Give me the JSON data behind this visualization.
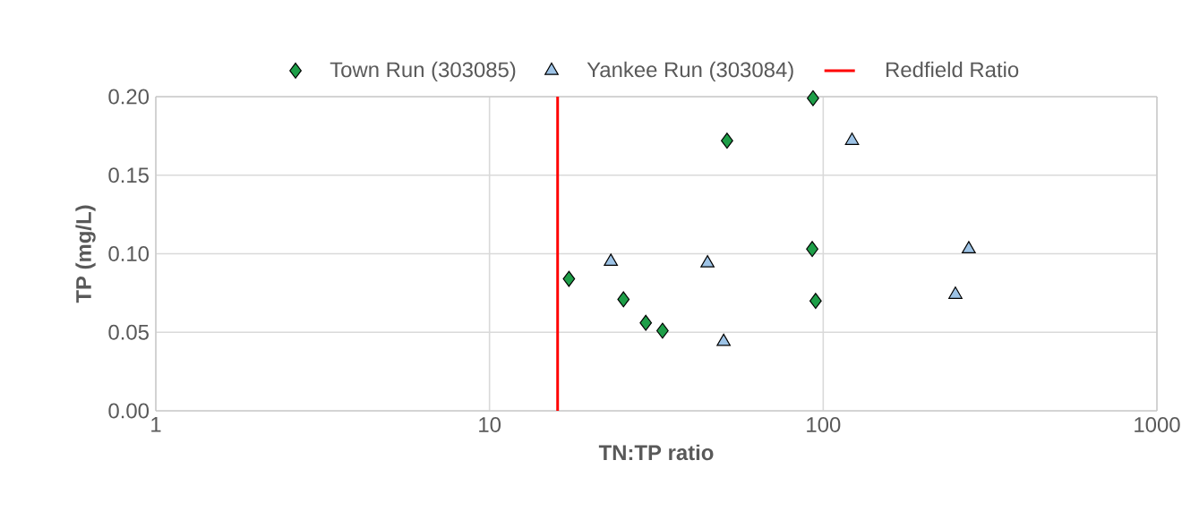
{
  "chart_data": {
    "type": "scatter",
    "xlabel": "TN:TP ratio",
    "ylabel": "TP (mg/L)",
    "log": "x",
    "grid": true,
    "legend": "top",
    "xlim": [
      1,
      1000
    ],
    "xticks": [
      1,
      10,
      100,
      1000
    ],
    "ylim": [
      0,
      0.2
    ],
    "yticks": [
      {
        "value": 0,
        "label": "0.00"
      },
      {
        "value": 0.05,
        "label": "0.05"
      },
      {
        "value": 0.1,
        "label": "0.10"
      },
      {
        "value": 0.15,
        "label": "0.15"
      },
      {
        "value": 0.2,
        "label": "0.20"
      }
    ],
    "series": [
      {
        "name": "Town Run (303085)",
        "color": "#1e9e48",
        "marker": "diamond",
        "x": [
          17.3,
          25.2,
          29.4,
          33.0,
          51.5,
          93.2,
          92.7,
          94.9
        ],
        "values": [
          0.084,
          0.071,
          0.056,
          0.051,
          0.172,
          0.199,
          0.103,
          0.07
        ]
      },
      {
        "name": "Yankee Run (303084)",
        "color": "#9dc3e6",
        "marker": "triangle",
        "x": [
          23.1,
          45.0,
          50.3,
          122,
          249,
          273
        ],
        "values": [
          0.095,
          0.094,
          0.044,
          0.172,
          0.074,
          0.103
        ]
      }
    ],
    "ref_lines": [
      {
        "axis": "x",
        "value": 16,
        "label": "Redfield Ratio",
        "color": "#ff0000",
        "line_style": "solid"
      }
    ]
  }
}
